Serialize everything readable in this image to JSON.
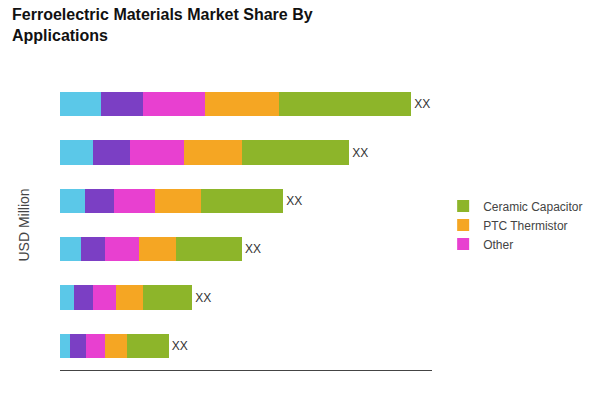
{
  "chart_data": {
    "type": "bar",
    "orientation": "horizontal",
    "stacked": true,
    "title": "Ferroelectric Materials Market Share By\nApplications",
    "ylabel": "USD Million",
    "categories": [
      null,
      null,
      null,
      null,
      null,
      null
    ],
    "series": [
      {
        "color": "#5bc8e8",
        "values": [
          1.0,
          0.8,
          0.6,
          0.5,
          0.35,
          0.25
        ]
      },
      {
        "color": "#7b3fc4",
        "values": [
          1.0,
          0.9,
          0.7,
          0.6,
          0.45,
          0.38
        ]
      },
      {
        "name": "Other",
        "color": "#e840d0",
        "values": [
          1.5,
          1.3,
          1.0,
          0.8,
          0.55,
          0.45
        ]
      },
      {
        "name": "PTC Thermistor",
        "color": "#f5a623",
        "values": [
          1.8,
          1.4,
          1.1,
          0.9,
          0.65,
          0.55
        ]
      },
      {
        "name": "Ceramic Capacitor",
        "color": "#8db52a",
        "values": [
          3.2,
          2.6,
          2.0,
          1.6,
          1.2,
          1.0
        ]
      }
    ],
    "annotations": [
      "XX",
      "XX",
      "XX",
      "XX",
      "XX",
      "XX"
    ],
    "xlim": [
      0,
      9
    ],
    "tick_labels": false,
    "grid": false,
    "legend": "right"
  }
}
